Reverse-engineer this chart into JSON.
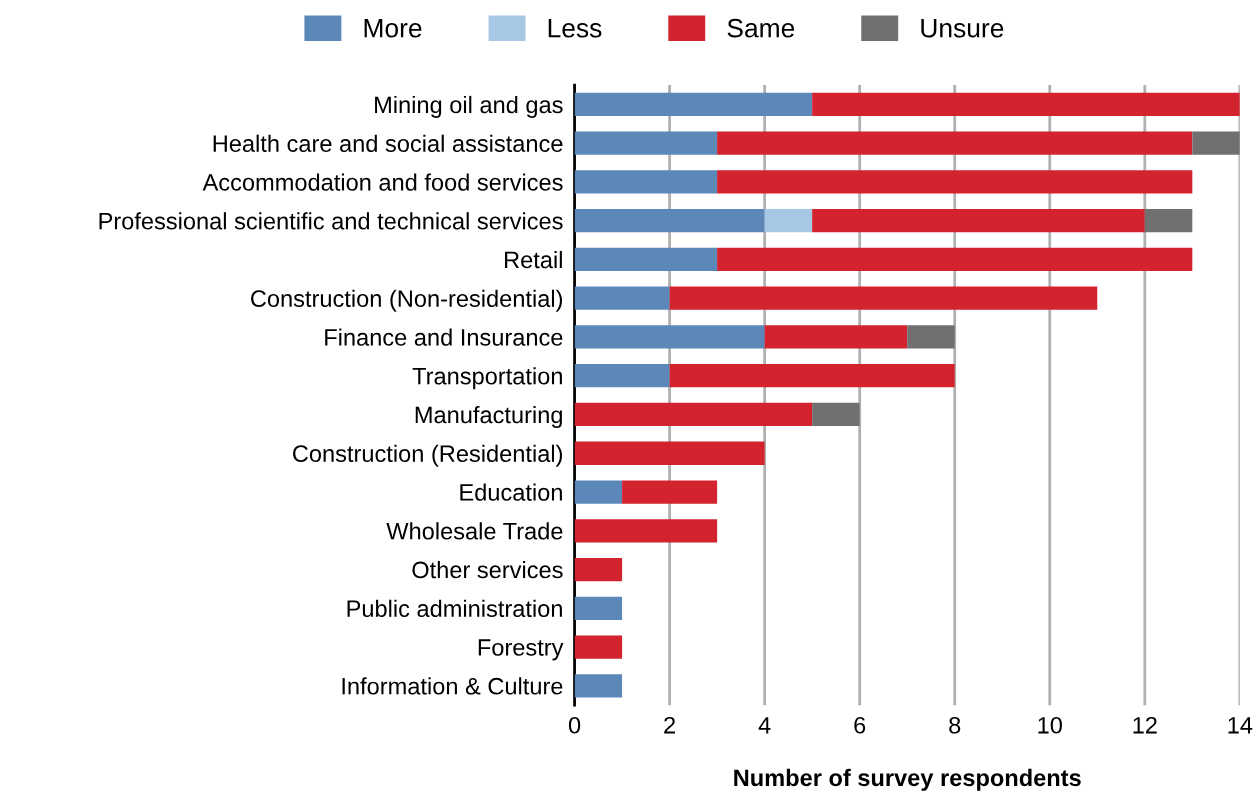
{
  "chart_data": {
    "type": "bar",
    "orientation": "horizontal",
    "stacked": true,
    "categories": [
      "Mining oil and gas",
      "Health care and social assistance",
      "Accommodation and food services",
      "Professional scientific and technical services",
      "Retail",
      "Construction (Non-residential)",
      "Finance and Insurance",
      "Transportation",
      "Manufacturing",
      "Construction (Residential)",
      "Education",
      "Wholesale Trade",
      "Other services",
      "Public administration",
      "Forestry",
      "Information & Culture"
    ],
    "series": [
      {
        "name": "More",
        "color": "#5b87b9",
        "values": [
          5,
          3,
          3,
          4,
          3,
          2,
          4,
          2,
          null,
          null,
          1,
          null,
          null,
          1,
          null,
          1
        ]
      },
      {
        "name": "Less",
        "color": "#a7c8e4",
        "values": [
          null,
          null,
          null,
          1,
          null,
          null,
          null,
          null,
          null,
          null,
          null,
          null,
          null,
          null,
          null,
          null
        ]
      },
      {
        "name": "Same",
        "color": "#d2232e",
        "values": [
          9,
          10,
          10,
          7,
          10,
          9,
          3,
          6,
          5,
          4,
          2,
          3,
          1,
          null,
          1,
          null
        ]
      },
      {
        "name": "Unsure",
        "color": "#707070",
        "values": [
          null,
          1,
          null,
          1,
          null,
          null,
          1,
          null,
          1,
          null,
          null,
          null,
          null,
          null,
          null,
          null
        ]
      }
    ],
    "xlabel": "Number of survey respondents",
    "xlim": [
      0,
      14
    ],
    "xticks": [
      0,
      2,
      4,
      6,
      8,
      10,
      12,
      14
    ],
    "grid": "x",
    "legend": "top"
  }
}
